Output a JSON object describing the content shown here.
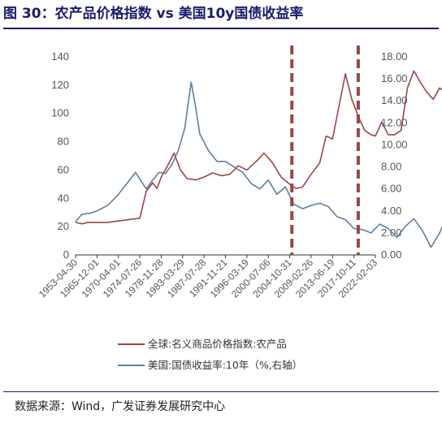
{
  "title": "图 30：农产品价格指数 vs 美国10y国债收益率",
  "source": "数据来源：Wind，广发证券发展研究中心",
  "chart_data": {
    "type": "line",
    "x_ticks": [
      "1953-04-30",
      "1965-12-01",
      "1970-04-01",
      "1974-07-26",
      "1978-11-28",
      "1983-03-29",
      "1987-07-28",
      "1991-11-21",
      "1996-03-19",
      "2000-07-06",
      "2004-10-31",
      "2009-02-26",
      "2013-06-19",
      "2017-10-11",
      "2022-02-03"
    ],
    "y_left": {
      "ticks": [
        "0",
        "20",
        "40",
        "60",
        "80",
        "100",
        "120",
        "140"
      ],
      "ylim": [
        0,
        140
      ]
    },
    "y_right": {
      "ticks": [
        "0.00",
        "2.00",
        "4.00",
        "6.00",
        "8.00",
        "10.00",
        "12.00",
        "14.00",
        "16.00",
        "18.00"
      ],
      "ylim": [
        0,
        18
      ]
    },
    "vlines_at_index": [
      10.1,
      13.2
    ],
    "series": [
      {
        "name": "全球:名义商品价格指数:农产品",
        "axis": "left",
        "color": "#9b4646",
        "points": [
          [
            0,
            23
          ],
          [
            0.3,
            22
          ],
          [
            0.6,
            23
          ],
          [
            1,
            23
          ],
          [
            1.5,
            23
          ],
          [
            2,
            24
          ],
          [
            2.5,
            25
          ],
          [
            3,
            26
          ],
          [
            3.3,
            45
          ],
          [
            3.6,
            51
          ],
          [
            3.8,
            47
          ],
          [
            4,
            55
          ],
          [
            4.3,
            63
          ],
          [
            4.6,
            72
          ],
          [
            4.9,
            60
          ],
          [
            5.2,
            54
          ],
          [
            5.6,
            53
          ],
          [
            6,
            55
          ],
          [
            6.4,
            58
          ],
          [
            6.8,
            56
          ],
          [
            7.2,
            57
          ],
          [
            7.6,
            63
          ],
          [
            8,
            60
          ],
          [
            8.5,
            67
          ],
          [
            8.8,
            72
          ],
          [
            9.2,
            65
          ],
          [
            9.6,
            55
          ],
          [
            10,
            50
          ],
          [
            10.3,
            47
          ],
          [
            10.6,
            48
          ],
          [
            11,
            57
          ],
          [
            11.4,
            65
          ],
          [
            11.7,
            84
          ],
          [
            12,
            82
          ],
          [
            12.3,
            105
          ],
          [
            12.6,
            128
          ],
          [
            12.9,
            110
          ],
          [
            13.2,
            98
          ],
          [
            13.5,
            88
          ],
          [
            13.8,
            85
          ],
          [
            14,
            84
          ],
          [
            14.3,
            94
          ],
          [
            14.6,
            85
          ],
          [
            14.9,
            85
          ],
          [
            15.2,
            88
          ],
          [
            15.5,
            118
          ],
          [
            15.8,
            130
          ],
          [
            16.1,
            122
          ],
          [
            16.4,
            115
          ],
          [
            16.7,
            110
          ],
          [
            17,
            118
          ],
          [
            17.3,
            115
          ],
          [
            17.6,
            122
          ],
          [
            17.9,
            112
          ]
        ]
      },
      {
        "name": "美国:国债收益率:10年（%,右轴）",
        "axis": "right",
        "color": "#5d7f9b",
        "points": [
          [
            0,
            3.0
          ],
          [
            0.3,
            3.7
          ],
          [
            0.7,
            3.8
          ],
          [
            1,
            4.0
          ],
          [
            1.5,
            4.5
          ],
          [
            2,
            5.5
          ],
          [
            2.4,
            6.5
          ],
          [
            2.8,
            7.5
          ],
          [
            3.3,
            6.0
          ],
          [
            3.6,
            6.8
          ],
          [
            3.9,
            7.5
          ],
          [
            4.2,
            7.4
          ],
          [
            4.5,
            8.2
          ],
          [
            4.8,
            9.5
          ],
          [
            5.1,
            11.5
          ],
          [
            5.4,
            15.7
          ],
          [
            5.6,
            13.5
          ],
          [
            5.8,
            11.0
          ],
          [
            6.2,
            9.5
          ],
          [
            6.6,
            8.5
          ],
          [
            7,
            8.5
          ],
          [
            7.4,
            8.0
          ],
          [
            7.8,
            7.5
          ],
          [
            8.2,
            6.5
          ],
          [
            8.6,
            6.0
          ],
          [
            9,
            6.8
          ],
          [
            9.4,
            5.5
          ],
          [
            9.8,
            6.2
          ],
          [
            10.2,
            4.6
          ],
          [
            10.6,
            4.2
          ],
          [
            11,
            4.5
          ],
          [
            11.4,
            4.7
          ],
          [
            11.8,
            4.4
          ],
          [
            12.2,
            3.5
          ],
          [
            12.6,
            3.2
          ],
          [
            13,
            2.4
          ],
          [
            13.4,
            2.3
          ],
          [
            13.8,
            2.0
          ],
          [
            14.2,
            2.8
          ],
          [
            14.6,
            2.4
          ],
          [
            15,
            1.6
          ],
          [
            15.4,
            2.6
          ],
          [
            15.8,
            3.3
          ],
          [
            16.2,
            2.2
          ],
          [
            16.6,
            0.7
          ],
          [
            17,
            2.0
          ],
          [
            17.4,
            3.8
          ],
          [
            17.8,
            4.3
          ],
          [
            18,
            3.9
          ]
        ]
      }
    ],
    "legend_position": "bottom"
  },
  "colors": {
    "title": "#1b1b6b",
    "series1": "#9b4646",
    "series2": "#5d7f9b",
    "vline": "#9b4646"
  }
}
